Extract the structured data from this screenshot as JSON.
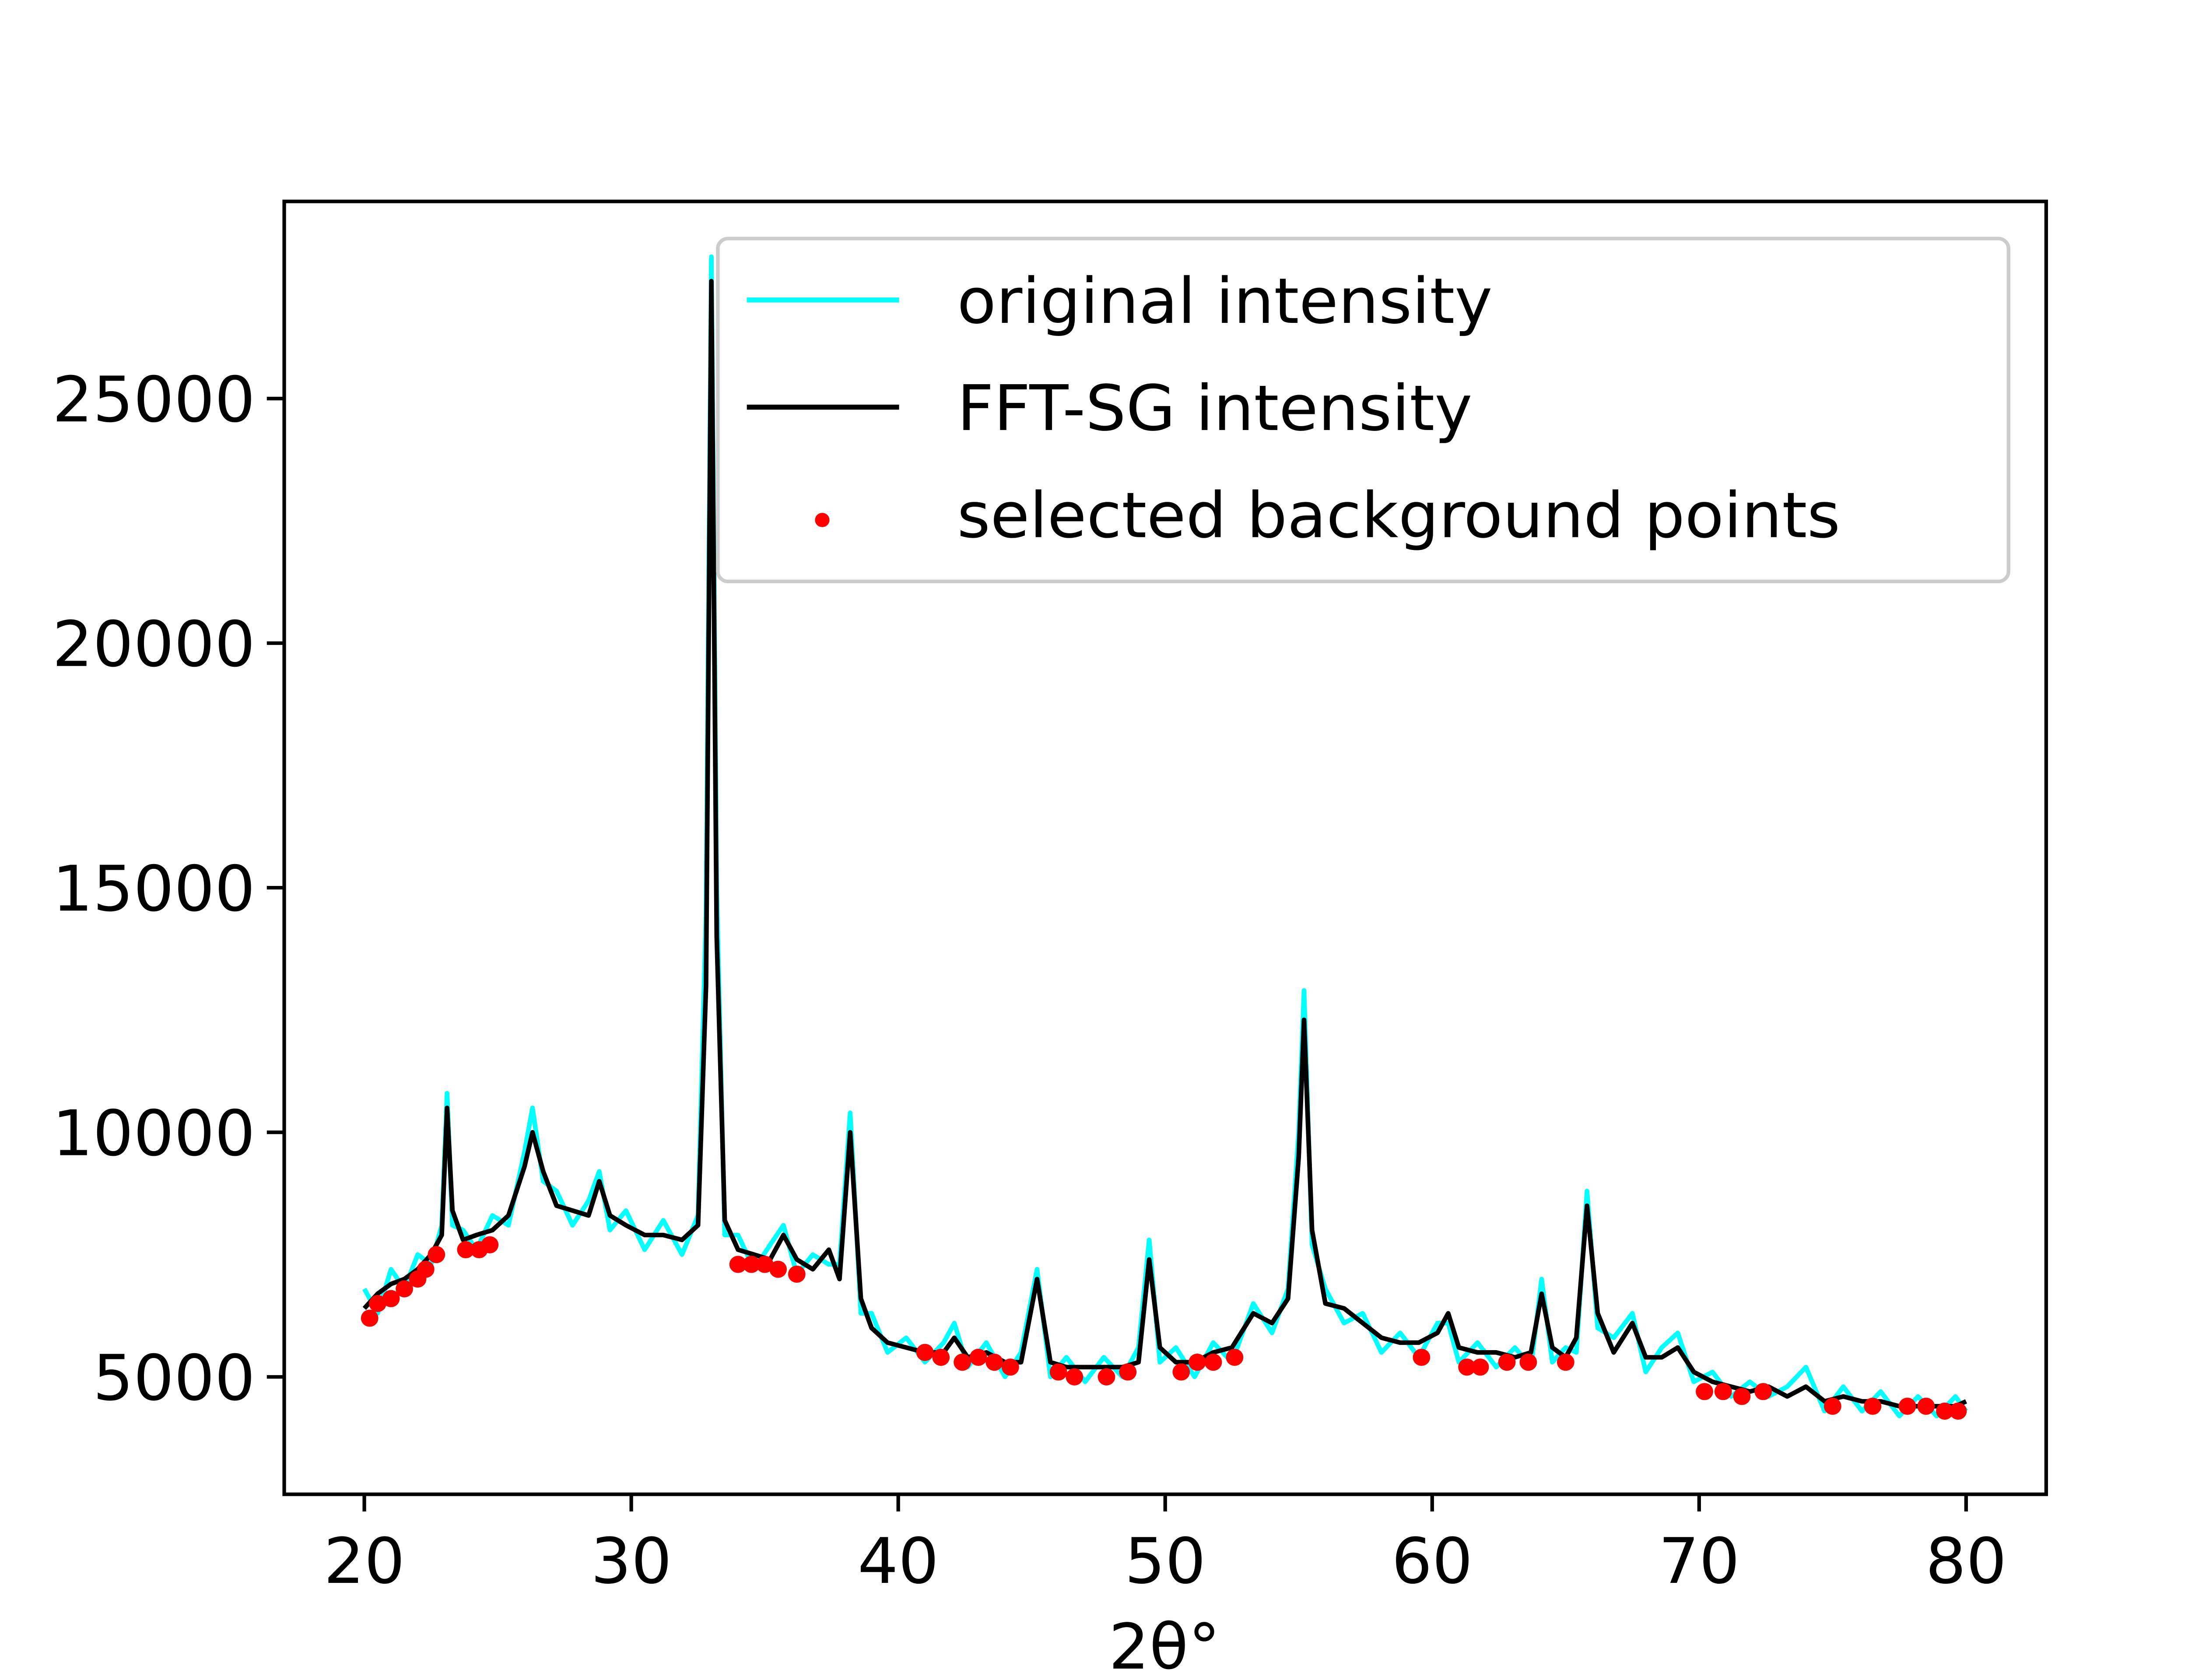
{
  "chart_data": {
    "type": "line",
    "xlabel": "2θ°",
    "x": [
      20,
      20.5,
      21,
      21.5,
      22,
      22.5,
      22.9,
      23.1,
      23.3,
      23.7,
      24.2,
      24.8,
      25.4,
      26,
      26.3,
      26.7,
      27.2,
      27.8,
      28.4,
      28.8,
      29.2,
      29.8,
      30.5,
      31.2,
      31.9,
      32.5,
      32.8,
      33,
      33.2,
      33.5,
      34,
      34.6,
      35.2,
      35.7,
      36.2,
      36.8,
      37.4,
      37.8,
      38.2,
      38.6,
      39,
      39.6,
      40.3,
      41,
      41.7,
      42.1,
      42.6,
      43.3,
      44,
      44.6,
      45.2,
      45.7,
      46.3,
      47,
      47.7,
      48.4,
      49,
      49.4,
      49.8,
      50.4,
      51.1,
      51.8,
      52.5,
      53.3,
      54,
      54.6,
      55,
      55.2,
      55.5,
      56,
      56.7,
      57.4,
      58.1,
      58.8,
      59.5,
      60.2,
      60.6,
      61,
      61.7,
      62.4,
      63.1,
      63.7,
      64.1,
      64.5,
      65,
      65.4,
      65.8,
      66.2,
      66.8,
      67.5,
      68,
      68.6,
      69.2,
      69.8,
      70.5,
      71.2,
      71.9,
      72.6,
      73.3,
      74,
      74.7,
      75.4,
      76.1,
      76.8,
      77.5,
      78.2,
      78.9,
      79.6,
      80
    ],
    "series": [
      {
        "name": "original intensity",
        "color": "#00ffff",
        "values": [
          6800,
          6300,
          7200,
          6800,
          7500,
          7300,
          8100,
          10800,
          8100,
          8000,
          7600,
          8300,
          8100,
          9600,
          10500,
          9000,
          8800,
          8100,
          8600,
          9200,
          8000,
          8400,
          7600,
          8200,
          7500,
          8300,
          14500,
          27900,
          15000,
          7900,
          7900,
          7200,
          7700,
          8100,
          7100,
          7500,
          7300,
          7300,
          10400,
          6300,
          6300,
          5500,
          5800,
          5300,
          5700,
          6100,
          5200,
          5700,
          5000,
          5500,
          7200,
          5000,
          5400,
          4900,
          5400,
          5000,
          5600,
          7800,
          5300,
          5600,
          5000,
          5700,
          5300,
          6500,
          5900,
          6800,
          10000,
          12900,
          7700,
          6800,
          6100,
          6300,
          5500,
          5900,
          5400,
          6100,
          6100,
          5300,
          5700,
          5200,
          5600,
          5200,
          7000,
          5300,
          5600,
          5500,
          8800,
          6000,
          5800,
          6300,
          5100,
          5600,
          5900,
          4900,
          5100,
          4600,
          4900,
          4600,
          4800,
          5200,
          4300,
          4800,
          4300,
          4700,
          4200,
          4600,
          4200,
          4600,
          4300
        ]
      },
      {
        "name": "FFT-SG intensity",
        "color": "#000000",
        "values": [
          6400,
          6700,
          6900,
          7000,
          7200,
          7500,
          7900,
          10500,
          8400,
          7800,
          7900,
          8000,
          8300,
          9300,
          10000,
          9200,
          8500,
          8400,
          8300,
          9000,
          8300,
          8100,
          7900,
          7900,
          7800,
          8100,
          13000,
          27400,
          14000,
          8200,
          7600,
          7500,
          7400,
          7900,
          7400,
          7200,
          7600,
          7000,
          10000,
          6600,
          6000,
          5700,
          5600,
          5500,
          5500,
          5800,
          5400,
          5500,
          5300,
          5300,
          7000,
          5300,
          5200,
          5200,
          5200,
          5200,
          5300,
          7400,
          5600,
          5300,
          5300,
          5500,
          5600,
          6300,
          6100,
          6600,
          9500,
          12300,
          8000,
          6500,
          6400,
          6100,
          5800,
          5700,
          5700,
          5900,
          6300,
          5600,
          5500,
          5500,
          5400,
          5500,
          6700,
          5600,
          5400,
          5800,
          8500,
          6300,
          5500,
          6100,
          5400,
          5400,
          5600,
          5100,
          4900,
          4800,
          4700,
          4800,
          4600,
          4800,
          4500,
          4600,
          4500,
          4500,
          4400,
          4400,
          4400,
          4400,
          4500
        ]
      },
      {
        "name": "selected background points",
        "color": "#ff0000",
        "type": "scatter",
        "x": [
          20.2,
          20.5,
          21,
          21.5,
          22,
          22.3,
          22.7,
          23.8,
          24.3,
          24.7,
          34,
          34.5,
          35,
          35.5,
          36.2,
          41,
          41.6,
          42.4,
          43,
          43.6,
          44.2,
          46,
          46.6,
          47.8,
          48.6,
          50.6,
          51.2,
          51.8,
          52.6,
          59.6,
          61.3,
          61.8,
          62.8,
          63.6,
          65,
          70.2,
          70.9,
          71.6,
          72.4,
          75,
          76.5,
          77.8,
          78.5,
          79.2,
          79.7
        ],
        "values": [
          6200,
          6500,
          6600,
          6800,
          7000,
          7200,
          7500,
          7600,
          7600,
          7700,
          7300,
          7300,
          7300,
          7200,
          7100,
          5500,
          5400,
          5300,
          5400,
          5300,
          5200,
          5100,
          5000,
          5000,
          5100,
          5100,
          5300,
          5300,
          5400,
          5400,
          5200,
          5200,
          5300,
          5300,
          5300,
          4700,
          4700,
          4600,
          4700,
          4400,
          4400,
          4400,
          4400,
          4300,
          4300
        ]
      }
    ],
    "xlim": [
      17,
      83
    ],
    "ylim": [
      2600,
      29030
    ],
    "xticks": [
      20,
      30,
      40,
      50,
      60,
      70,
      80
    ],
    "yticks": [
      5000,
      10000,
      15000,
      20000,
      25000
    ],
    "legend": "upper right"
  }
}
